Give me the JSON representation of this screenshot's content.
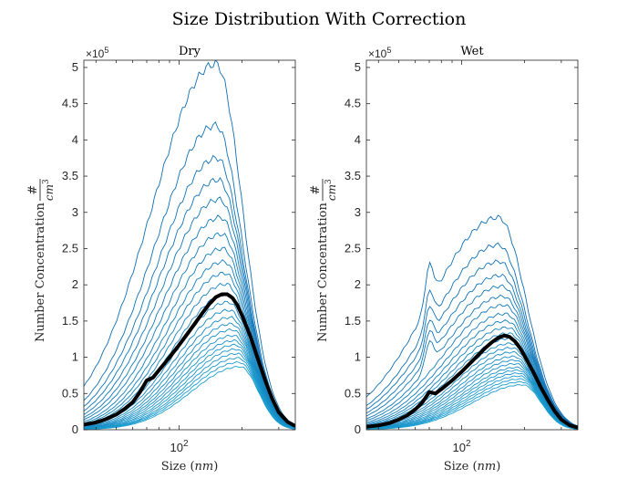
{
  "figure": {
    "title": "Size Distribution With Correction"
  },
  "chart_data": [
    {
      "type": "line",
      "panel_title": "Dry",
      "xlabel": "Size (nm)",
      "ylabel": "Number Concentration #/cm^3",
      "x_scale": "log",
      "x_tick_label": "10^2",
      "xlim": [
        35,
        360
      ],
      "ylim": [
        0,
        510000
      ],
      "y_exponent_label": "×10^5",
      "y_ticks": [
        0,
        0.5,
        1,
        1.5,
        2,
        2.5,
        3,
        3.5,
        4,
        4.5,
        5
      ],
      "y_unit_multiplier": 100000,
      "grid": false,
      "legend": "none",
      "curves": {
        "peak_x_nm": [
          150,
          150,
          152,
          154,
          156,
          158,
          160,
          162,
          164,
          166,
          168,
          170,
          172,
          174,
          176,
          178,
          180,
          182,
          184,
          186,
          188,
          190,
          192,
          194,
          196
        ],
        "peak_y": [
          505000,
          420000,
          375000,
          345000,
          318000,
          293000,
          270000,
          250000,
          232000,
          216000,
          201000,
          187000,
          176000,
          165000,
          155000,
          146000,
          138000,
          130000,
          123000,
          117000,
          111000,
          105000,
          99000,
          93000,
          87000
        ],
        "left_y": [
          60000,
          40000,
          32000,
          26000,
          21000,
          17000,
          14000,
          11000,
          9000,
          7500,
          6300,
          5200,
          4300,
          3600,
          3000,
          2500,
          2100,
          1800,
          1500,
          1200,
          1000,
          800,
          700,
          600,
          500
        ],
        "right_y": [
          6000,
          5500,
          5200,
          5000,
          4800,
          4600,
          4400,
          4200,
          4000,
          3800,
          3600,
          3400,
          3200,
          3000,
          2800,
          2600,
          2400,
          2200,
          2000,
          1800,
          1600,
          1400,
          1200,
          1000,
          900
        ],
        "colors": [
          "#0f6fb4",
          "#1a9ed0"
        ]
      },
      "mean_curve": {
        "color": "#000000",
        "x_nm": [
          35,
          40,
          45,
          50,
          55,
          60,
          65,
          70,
          75,
          80,
          90,
          100,
          110,
          120,
          130,
          140,
          150,
          160,
          170,
          180,
          190,
          200,
          220,
          240,
          260,
          280,
          300,
          330,
          360
        ],
        "y": [
          7000,
          10000,
          15000,
          21000,
          29000,
          38000,
          52000,
          68000,
          72000,
          82000,
          100000,
          117000,
          133000,
          148000,
          162000,
          174000,
          183000,
          187000,
          187000,
          182000,
          172000,
          158000,
          128000,
          95000,
          66000,
          42000,
          24000,
          11000,
          5000
        ]
      }
    },
    {
      "type": "line",
      "panel_title": "Wet",
      "xlabel": "Size (nm)",
      "ylabel": "Number Concentration #/cm^3",
      "x_scale": "log",
      "x_tick_label": "10^2",
      "xlim": [
        35,
        360
      ],
      "ylim": [
        0,
        510000
      ],
      "y_exponent_label": "×10^5",
      "y_ticks": [
        0,
        0.5,
        1,
        1.5,
        2,
        2.5,
        3,
        3.5,
        4,
        4.5,
        5
      ],
      "y_unit_multiplier": 100000,
      "grid": false,
      "legend": "none",
      "curves": {
        "peak_x_nm": [
          150,
          150,
          152,
          154,
          156,
          158,
          160,
          162,
          164,
          166,
          168,
          170,
          172,
          174,
          176,
          178,
          180,
          182,
          184,
          186,
          188,
          190,
          192,
          194,
          196
        ],
        "peak_y": [
          293000,
          255000,
          232000,
          213000,
          198000,
          184000,
          172000,
          160000,
          150000,
          141000,
          133000,
          126000,
          119000,
          113000,
          107000,
          101000,
          96000,
          91000,
          86000,
          82000,
          78000,
          74000,
          70000,
          66000,
          62000
        ],
        "left_y": [
          45000,
          33000,
          28000,
          23000,
          19000,
          15000,
          12500,
          10000,
          8200,
          6800,
          5700,
          4800,
          4000,
          3300,
          2800,
          2300,
          1900,
          1600,
          1300,
          1100,
          900,
          750,
          650,
          550,
          450
        ],
        "right_y": [
          5000,
          4700,
          4500,
          4300,
          4100,
          3900,
          3700,
          3500,
          3300,
          3100,
          2900,
          2700,
          2500,
          2300,
          2100,
          1900,
          1700,
          1500,
          1300,
          1200,
          1100,
          1000,
          900,
          800,
          700
        ],
        "colors": [
          "#0f6fb4",
          "#1a9ed0"
        ]
      },
      "mean_curve": {
        "color": "#000000",
        "x_nm": [
          35,
          40,
          45,
          50,
          55,
          60,
          65,
          70,
          75,
          80,
          90,
          100,
          110,
          120,
          130,
          140,
          150,
          160,
          170,
          180,
          190,
          200,
          220,
          240,
          260,
          280,
          300,
          330,
          360
        ],
        "y": [
          4000,
          6000,
          9000,
          14000,
          20000,
          28000,
          38000,
          52000,
          50000,
          56000,
          68000,
          80000,
          92000,
          103000,
          113000,
          121000,
          127000,
          130000,
          128000,
          122000,
          113000,
          102000,
          80000,
          58000,
          40000,
          25000,
          14000,
          6000,
          3000
        ]
      }
    }
  ]
}
